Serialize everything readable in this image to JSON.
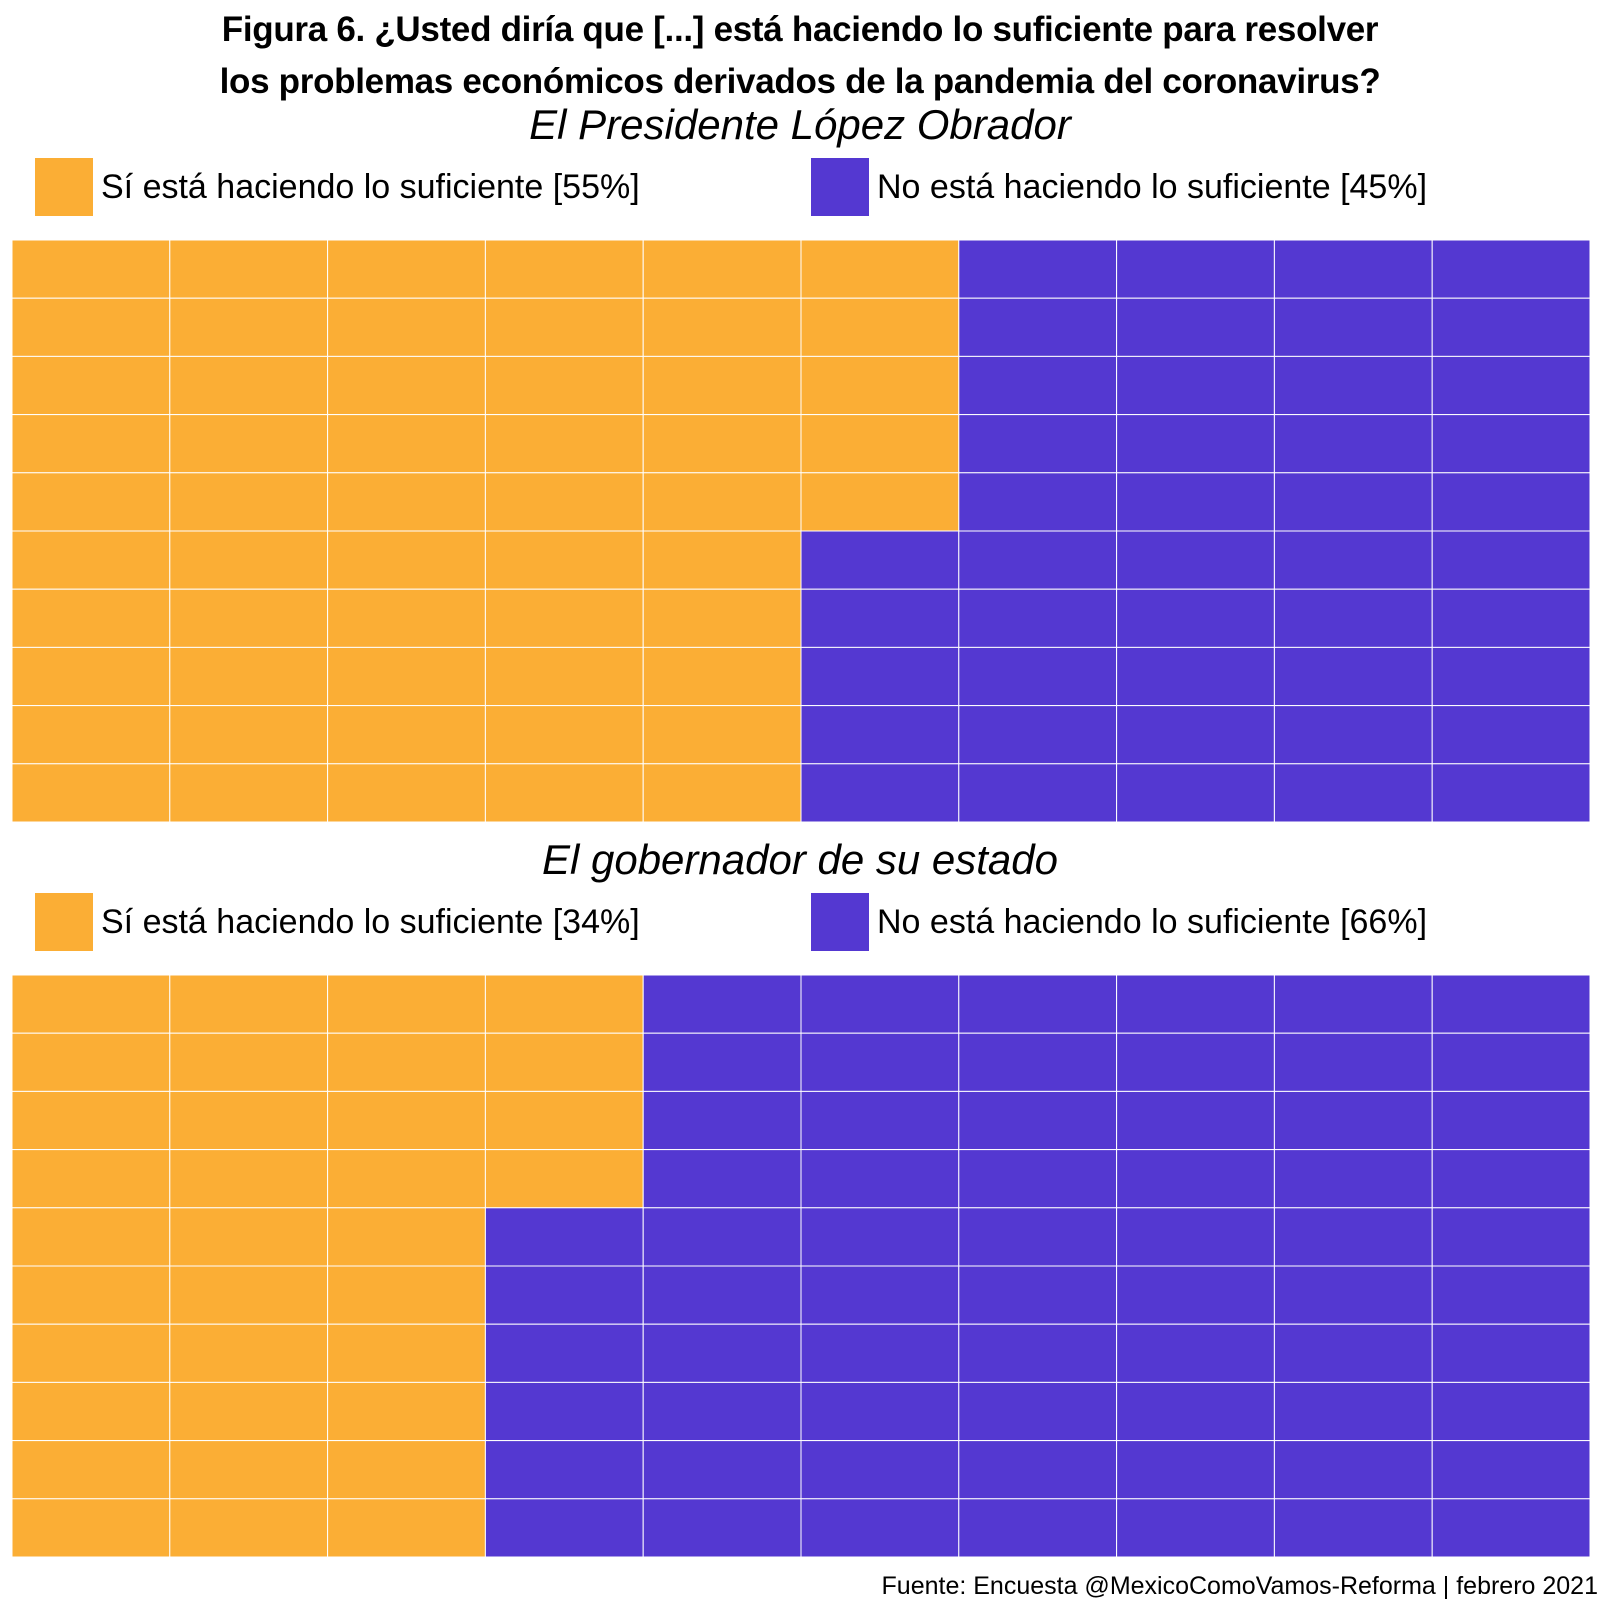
{
  "figure": {
    "title_line1": "Figura 6. ¿Usted diría que [...] está haciendo lo suficiente para resolver",
    "title_line2": "los problemas económicos derivados de la pandemia del coronavirus?",
    "source": "Fuente: Encuesta @MexicoComoVamos-Reforma | febrero 2021"
  },
  "colors": {
    "si": "#FBAE35",
    "no": "#5438D1",
    "grid": "#FFFFFF"
  },
  "chart_data": [
    {
      "type": "waffle",
      "title": "El Presidente López Obrador",
      "rows": 10,
      "columns": 10,
      "fill_order": "column-major",
      "series": [
        {
          "name": "Sí está haciendo lo suficiente [55%]",
          "value": 55
        },
        {
          "name": "No está haciendo lo suficiente [45%]",
          "value": 45
        }
      ]
    },
    {
      "type": "waffle",
      "title": "El gobernador de su estado",
      "rows": 10,
      "columns": 10,
      "fill_order": "column-major",
      "series": [
        {
          "name": "Sí está haciendo lo suficiente [34%]",
          "value": 34
        },
        {
          "name": "No está haciendo lo suficiente [66%]",
          "value": 66
        }
      ]
    }
  ]
}
